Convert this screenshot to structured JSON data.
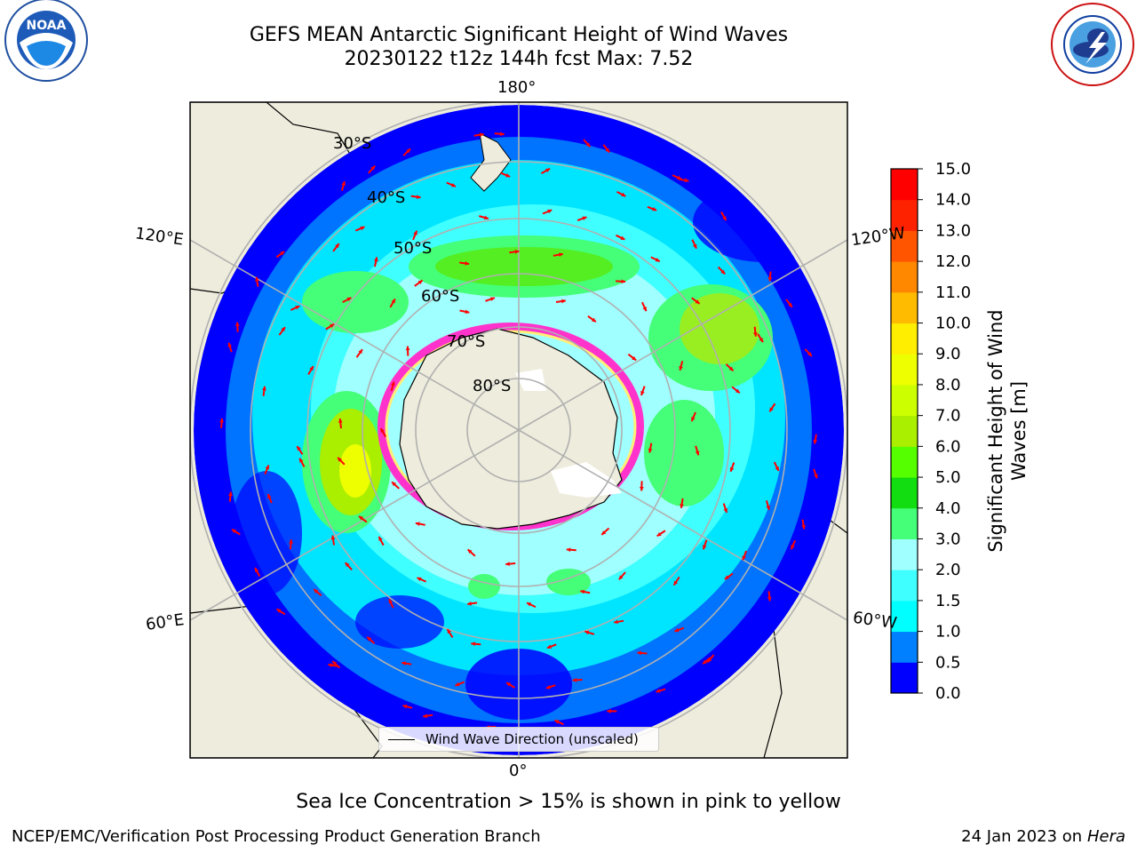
{
  "title": {
    "line1": "GEFS MEAN Antarctic Significant Height of Wind Waves",
    "line2": "20230122 t12z 144h fcst   Max: 7.52"
  },
  "logos": {
    "noaa": {
      "text": "NOAA",
      "ring_text": "NATIONAL OCEANIC AND ATMOSPHERIC ADMINISTRATION · U.S. DEPARTMENT OF COMMERCE"
    },
    "nws": {
      "ring_text": "NATIONAL WEATHER SERVICE"
    }
  },
  "map": {
    "projection": "south polar stereographic",
    "longitude_labels": [
      "180°",
      "120°E",
      "120°W",
      "60°E",
      "60°W",
      "0°"
    ],
    "latitude_labels": [
      "30°S",
      "40°S",
      "50°S",
      "60°S",
      "70°S",
      "80°S"
    ],
    "legend_label": "Wind Wave Direction (unscaled)",
    "colors": {
      "land": "#eeecdc",
      "ice": "#ff33cc",
      "ice_high": "#ffee77",
      "arrows": "#ff0000",
      "grid": "#b0b0b0"
    }
  },
  "colorbar": {
    "title_line1": "Significant Height of Wind",
    "title_line2": "Waves [m]",
    "ticks": [
      "0.0",
      "0.5",
      "1.0",
      "1.5",
      "2.0",
      "3.0",
      "4.0",
      "5.0",
      "6.0",
      "7.0",
      "8.0",
      "9.0",
      "10.0",
      "11.0",
      "12.0",
      "13.0",
      "14.0",
      "15.0"
    ],
    "colors": [
      "#0000ff",
      "#0080ff",
      "#00ffff",
      "#40ffff",
      "#a0ffff",
      "#44ff77",
      "#11dd11",
      "#55ff00",
      "#aaee00",
      "#ccff00",
      "#eeff00",
      "#ffee00",
      "#ffbb00",
      "#ff8800",
      "#ff5500",
      "#ff2200",
      "#ff0000"
    ]
  },
  "caption": "Sea Ice Concentration > 15% is shown in pink to yellow",
  "footer": {
    "left": "NCEP/EMC/Verification Post Processing Product Generation Branch",
    "right_prefix": "24 Jan 2023 on ",
    "right_italic": "Hera"
  }
}
